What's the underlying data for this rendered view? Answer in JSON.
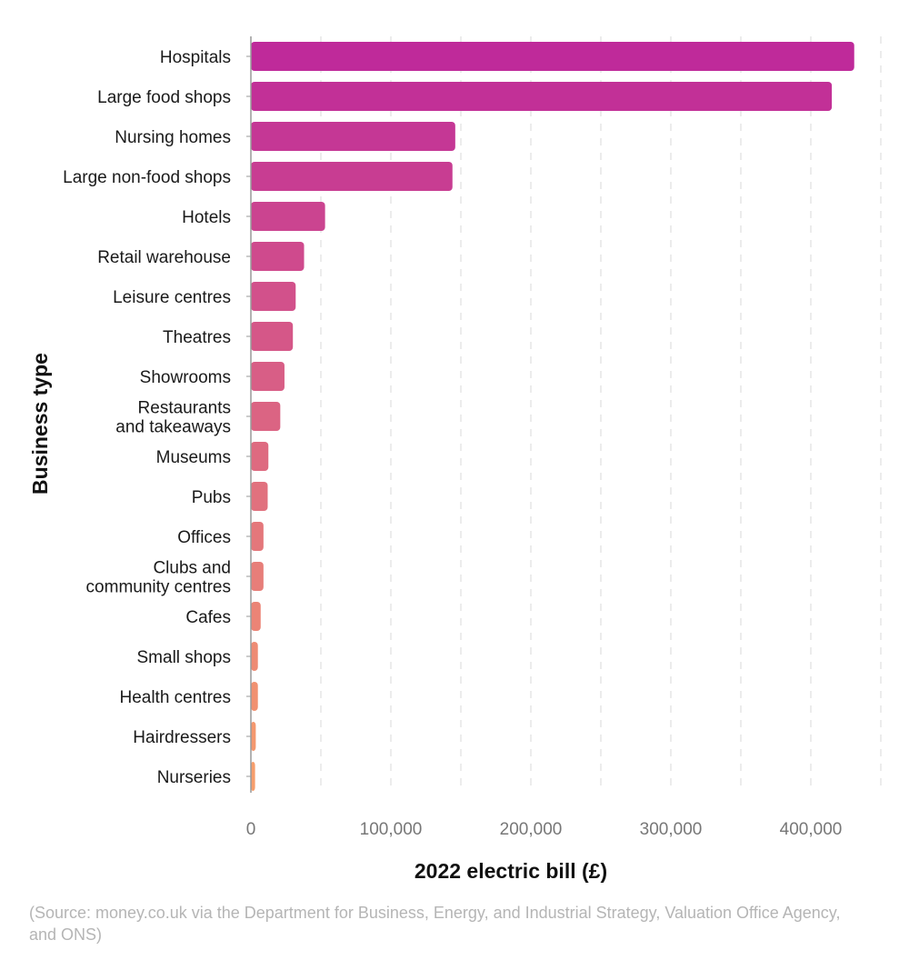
{
  "chart_data": {
    "type": "bar",
    "orientation": "horizontal",
    "categories": [
      "Hospitals",
      "Large food shops",
      "Nursing homes",
      "Large non-food shops",
      "Hotels",
      "Retail warehouse",
      "Leisure centres",
      "Theatres",
      "Showrooms",
      "Restaurants and takeaways",
      "Museums",
      "Pubs",
      "Offices",
      "Clubs and community centres",
      "Cafes",
      "Small shops",
      "Health centres",
      "Hairdressers",
      "Nurseries"
    ],
    "category_lines": [
      [
        "Hospitals"
      ],
      [
        "Large food shops"
      ],
      [
        "Nursing homes"
      ],
      [
        "Large non-food shops"
      ],
      [
        "Hotels"
      ],
      [
        "Retail warehouse"
      ],
      [
        "Leisure centres"
      ],
      [
        "Theatres"
      ],
      [
        "Showrooms"
      ],
      [
        "Restaurants",
        "and takeaways"
      ],
      [
        "Museums"
      ],
      [
        "Pubs"
      ],
      [
        "Offices"
      ],
      [
        "Clubs and",
        "community centres"
      ],
      [
        "Cafes"
      ],
      [
        "Small shops"
      ],
      [
        "Health centres"
      ],
      [
        "Hairdressers"
      ],
      [
        "Nurseries"
      ]
    ],
    "values": [
      431000,
      415000,
      146000,
      144000,
      53000,
      38000,
      32000,
      30000,
      24000,
      21000,
      12500,
      12000,
      9000,
      9000,
      7000,
      5000,
      5000,
      3500,
      3000
    ],
    "xlabel": "2022 electric bill (£)",
    "ylabel": "Business type",
    "xlim": [
      0,
      450000
    ],
    "xticks": [
      0,
      100000,
      200000,
      300000,
      400000
    ],
    "xtick_labels": [
      "0",
      "100,000",
      "200,000",
      "300,000",
      "400,000"
    ],
    "grid": true,
    "colors": {
      "start": "#bf2a9a",
      "end": "#f79e6c"
    }
  },
  "source": "(Source: money.co.uk via the Department for Business, Energy, and Industrial Strategy, Valuation Office Agency, and ONS)"
}
